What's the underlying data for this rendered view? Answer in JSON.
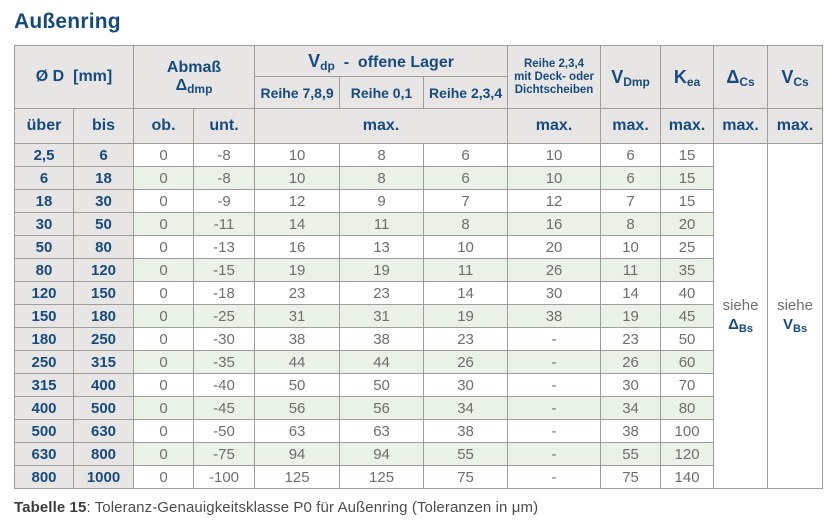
{
  "title": "Außenring",
  "colors": {
    "accent_blue": "#174b7f",
    "text_gray": "#6e6e6e",
    "header_bg": "#e7e6e4",
    "row_green": "#eaf1e6",
    "border": "#9d9d9d"
  },
  "table": {
    "header": {
      "od": "Ø D  [mm]",
      "abmass_line1": "Abmaß",
      "abmass": {
        "sym": "Δ",
        "sub": "dmp"
      },
      "vdp": {
        "sym": "V",
        "sub": "dp",
        "rest": "  -  offene Lager"
      },
      "reihe789": "Reihe 7,8,9",
      "reihe01": "Reihe 0,1",
      "reihe234": "Reihe 2,3,4",
      "deck_lines": {
        "l1": "Reihe 2,3,4",
        "l2": "mit Deck- oder",
        "l3": "Dichtscheiben"
      },
      "vdmp": {
        "sym": "V",
        "sub": "Dmp"
      },
      "kea": {
        "sym": "K",
        "sub": "ea"
      },
      "dcs": {
        "sym": "Δ",
        "sub": "Cs"
      },
      "vcs": {
        "sym": "V",
        "sub": "Cs"
      },
      "ueber": "über",
      "bis": "bis",
      "ob": "ob.",
      "unt": "unt.",
      "max": "max."
    },
    "rows": [
      [
        "2,5",
        "6",
        "0",
        "-8",
        "10",
        "8",
        "6",
        "10",
        "6",
        "15"
      ],
      [
        "6",
        "18",
        "0",
        "-8",
        "10",
        "8",
        "6",
        "10",
        "6",
        "15"
      ],
      [
        "18",
        "30",
        "0",
        "-9",
        "12",
        "9",
        "7",
        "12",
        "7",
        "15"
      ],
      [
        "30",
        "50",
        "0",
        "-11",
        "14",
        "11",
        "8",
        "16",
        "8",
        "20"
      ],
      [
        "50",
        "80",
        "0",
        "-13",
        "16",
        "13",
        "10",
        "20",
        "10",
        "25"
      ],
      [
        "80",
        "120",
        "0",
        "-15",
        "19",
        "19",
        "11",
        "26",
        "11",
        "35"
      ],
      [
        "120",
        "150",
        "0",
        "-18",
        "23",
        "23",
        "14",
        "30",
        "14",
        "40"
      ],
      [
        "150",
        "180",
        "0",
        "-25",
        "31",
        "31",
        "19",
        "38",
        "19",
        "45"
      ],
      [
        "180",
        "250",
        "0",
        "-30",
        "38",
        "38",
        "23",
        "-",
        "23",
        "50"
      ],
      [
        "250",
        "315",
        "0",
        "-35",
        "44",
        "44",
        "26",
        "-",
        "26",
        "60"
      ],
      [
        "315",
        "400",
        "0",
        "-40",
        "50",
        "50",
        "30",
        "-",
        "30",
        "70"
      ],
      [
        "400",
        "500",
        "0",
        "-45",
        "56",
        "56",
        "34",
        "-",
        "34",
        "80"
      ],
      [
        "500",
        "630",
        "0",
        "-50",
        "63",
        "63",
        "38",
        "-",
        "38",
        "100"
      ],
      [
        "630",
        "800",
        "0",
        "-75",
        "94",
        "94",
        "55",
        "-",
        "55",
        "120"
      ],
      [
        "800",
        "1000",
        "0",
        "-100",
        "125",
        "125",
        "75",
        "-",
        "75",
        "140"
      ]
    ],
    "siehe_dcs": {
      "word": "siehe",
      "sym": "Δ",
      "sub": "Bs"
    },
    "siehe_vcs": {
      "word": "siehe",
      "sym": "V",
      "sub": "Bs"
    }
  },
  "caption": {
    "bold": "Tabelle 15",
    "rest": ": Toleranz-Genauigkeitsklasse P0 für Außenring (Toleranzen in μm)"
  }
}
